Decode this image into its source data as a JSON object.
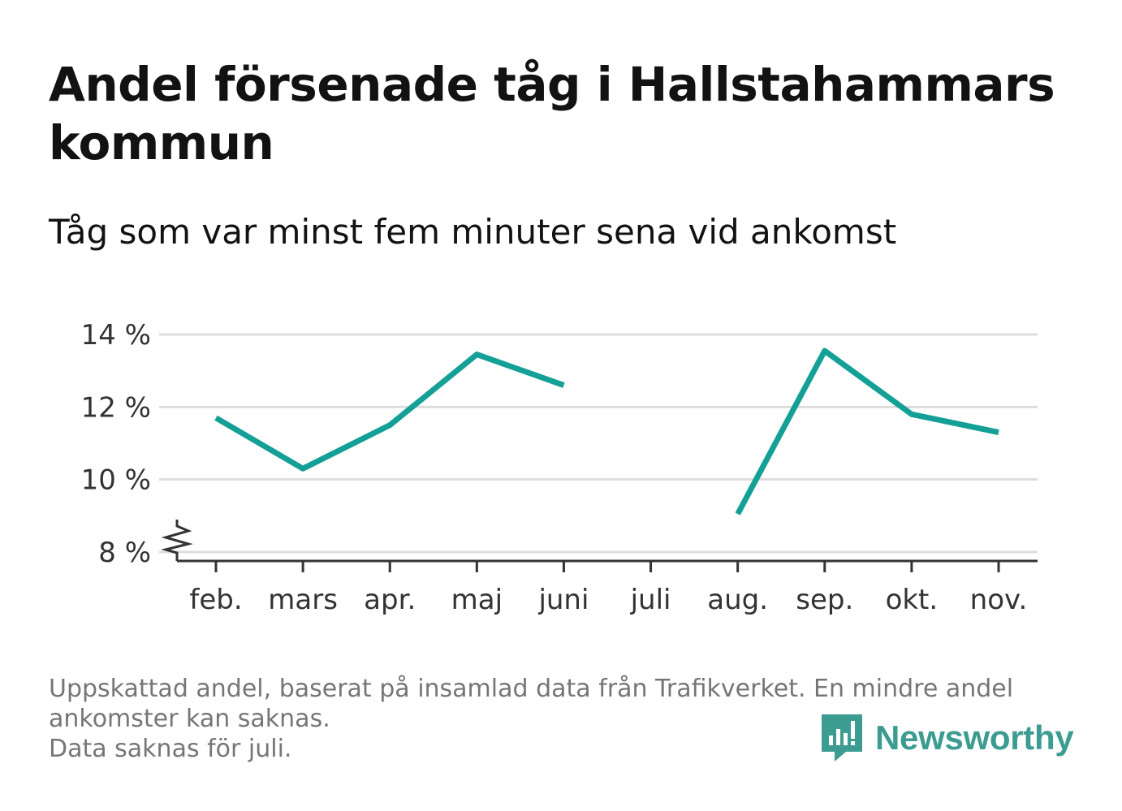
{
  "title": "Andel försenade tåg i Hallstahammars kommun",
  "subtitle": "Tåg som var minst fem minuter sena vid ankomst",
  "note_lines": [
    "Uppskattad andel, baserat på insamlad data från Trafikverket. En mindre andel ankomster kan saknas.",
    "Data saknas för juli."
  ],
  "logo_text": "Newsworthy",
  "colors": {
    "line": "#14a096",
    "grid": "#dddddd",
    "axis": "#333333",
    "logo": "#3c9c92"
  },
  "chart_data": {
    "type": "line",
    "categories": [
      "feb.",
      "mars",
      "apr.",
      "maj",
      "juni",
      "juli",
      "aug.",
      "sep.",
      "okt.",
      "nov."
    ],
    "series": [
      {
        "values": [
          11.7,
          10.3,
          11.5,
          13.45,
          12.6,
          null,
          9.05,
          13.55,
          11.8,
          11.3
        ]
      }
    ],
    "y_ticks": [
      8,
      10,
      12,
      14
    ],
    "y_tick_labels": [
      "8 %",
      "10 %",
      "12 %",
      "14 %"
    ],
    "ylim": [
      8,
      14
    ],
    "y_axis_break": true,
    "grid": true,
    "xlabel": "",
    "ylabel": ""
  }
}
